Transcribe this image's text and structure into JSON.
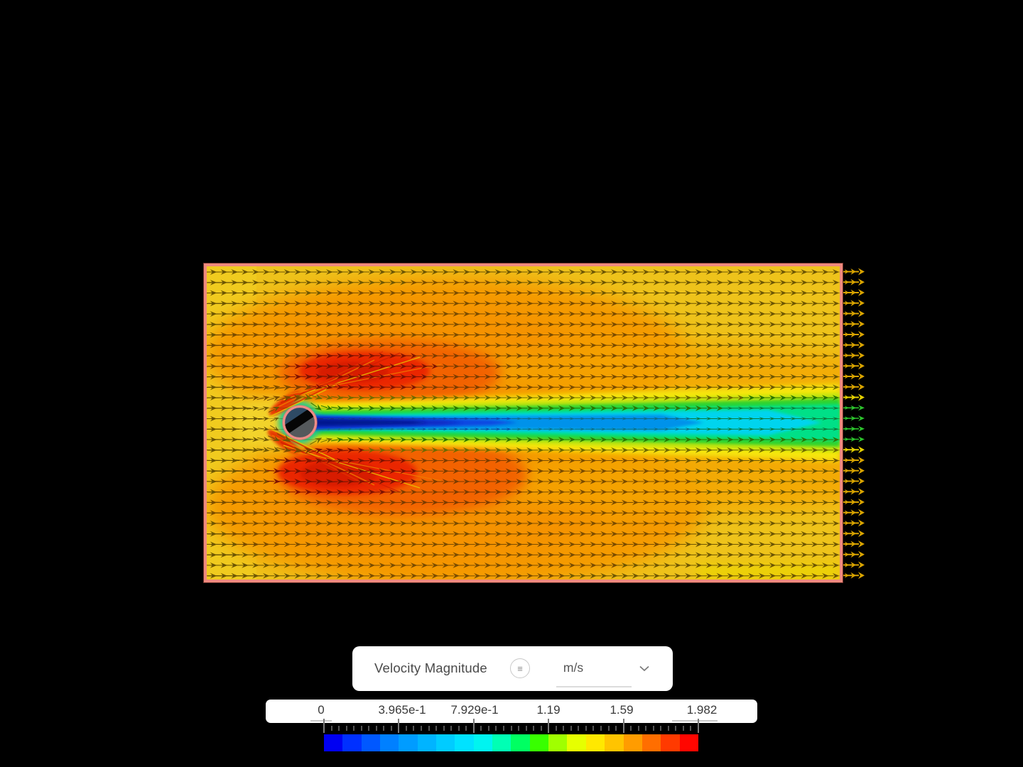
{
  "window": {
    "background": "#000000"
  },
  "legend": {
    "title": "Velocity Magnitude",
    "unit": "m/s"
  },
  "colorbar": {
    "tick_labels": [
      "0",
      "3.965e-1",
      "7.929e-1",
      "1.19",
      "1.59",
      "1.982"
    ],
    "segment_colors": [
      "#0000f2",
      "#0030ff",
      "#0058ff",
      "#0080ff",
      "#009cff",
      "#00b4ff",
      "#00ccff",
      "#00e2ff",
      "#00f4f0",
      "#00ffb4",
      "#00ff62",
      "#38ff00",
      "#a0ff00",
      "#e6ff00",
      "#ffe800",
      "#ffc400",
      "#ff9c00",
      "#ff6e00",
      "#ff3a00",
      "#ff0600"
    ]
  },
  "field": {
    "border_color": "#ef8a7e",
    "base_gold": "#eec31b",
    "orange": "#f59a00",
    "deep_orange": "#f26000",
    "red": "#ea2500",
    "dark_red": "#d81a00",
    "wake_blue": "#0c46e2",
    "wake_cyan": "#00d4ee",
    "wake_green": "#2fd32f",
    "cylinder_ring": "#ee8c86",
    "outflow_gold": "#d8a300",
    "outflow_green": "#2cc42c",
    "outflow_yellow": "#e3cf00"
  }
}
